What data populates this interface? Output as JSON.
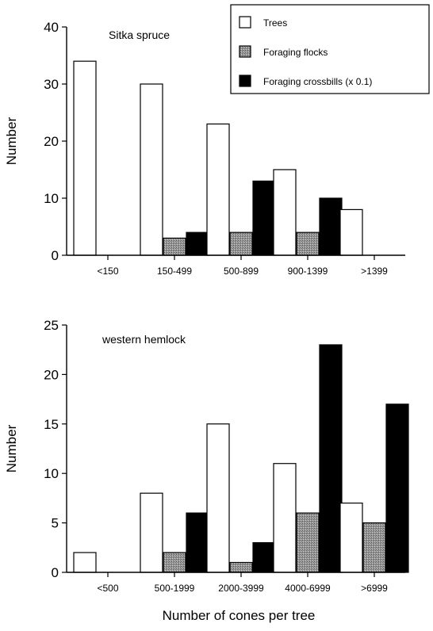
{
  "colors": {
    "trees": "#ffffff",
    "flocks": "#8a8a8a",
    "crossbills": "#000000",
    "axis": "#000000"
  },
  "legend": {
    "placement": "top-right",
    "entries": [
      "Trees",
      "Foraging flocks",
      "Foraging crossbills (x 0.1)"
    ]
  },
  "xlabel": "Number of cones per tree",
  "chart_data": [
    {
      "type": "bar",
      "title": "Sitka spruce",
      "ylabel": "Number",
      "ylim": [
        0,
        40
      ],
      "yticks": [
        0,
        10,
        20,
        30,
        40
      ],
      "categories": [
        "<150",
        "150-499",
        "500-899",
        "900-1399",
        ">1399"
      ],
      "series": [
        {
          "name": "Trees",
          "values": [
            34,
            30,
            23,
            15,
            8
          ]
        },
        {
          "name": "Foraging flocks",
          "values": [
            0,
            3,
            4,
            4,
            0
          ]
        },
        {
          "name": "Foraging crossbills (x 0.1)",
          "values": [
            0,
            4,
            13,
            10,
            0
          ]
        }
      ]
    },
    {
      "type": "bar",
      "title": "western hemlock",
      "ylabel": "Number",
      "ylim": [
        0,
        25
      ],
      "yticks": [
        0,
        5,
        10,
        15,
        20,
        25
      ],
      "categories": [
        "<500",
        "500-1999",
        "2000-3999",
        "4000-6999",
        ">6999"
      ],
      "series": [
        {
          "name": "Trees",
          "values": [
            2,
            8,
            15,
            11,
            7
          ]
        },
        {
          "name": "Foraging flocks",
          "values": [
            0,
            2,
            1,
            6,
            5
          ]
        },
        {
          "name": "Foraging crossbills (x 0.1)",
          "values": [
            0,
            6,
            3,
            23,
            17
          ]
        }
      ]
    }
  ]
}
